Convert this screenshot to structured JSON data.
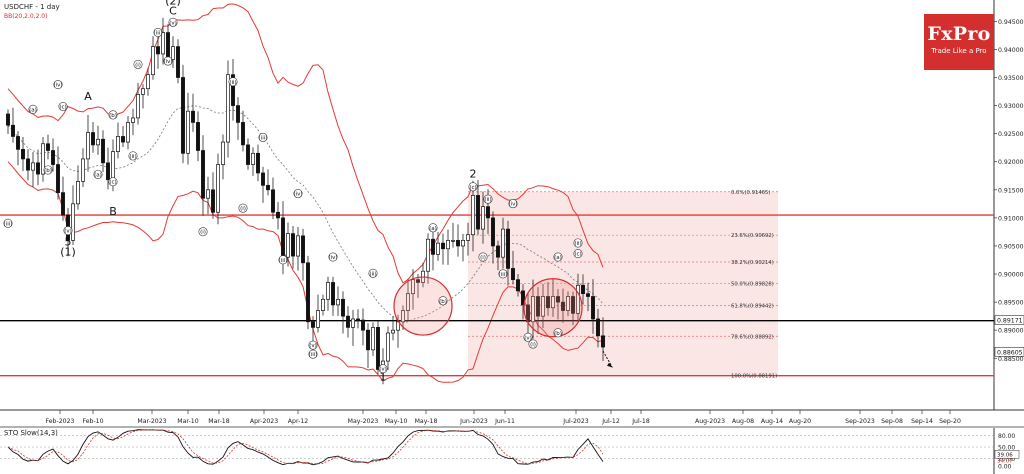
{
  "header": {
    "symbol": "USDCHF - 1 day",
    "indicator": "BB(20,2.0,2.0)"
  },
  "logo": {
    "brand": "FxPro",
    "tagline": "Trade Like a Pro"
  },
  "oscillator": {
    "label": "STO Slow(14,3)",
    "levels": [
      "80.00",
      "50.00",
      "20.00",
      "0.00"
    ],
    "value1": "34.07",
    "value2": "39.06"
  },
  "colors": {
    "up": "#111111",
    "down": "#111111",
    "band": "#e53935",
    "fib_zone": "#fbe3e3",
    "hline_red": "#e53935",
    "hline_black": "#000000"
  },
  "chart_data": {
    "type": "candlestick",
    "title": "USDCHF - 1 day",
    "y_ticks": [
      "0.94500",
      "0.94000",
      "0.93500",
      "0.93000",
      "0.92500",
      "0.92000",
      "0.91500",
      "0.91000",
      "0.90500",
      "0.90000",
      "0.89500",
      "0.89000",
      "0.88500"
    ],
    "ylim": [
      0.8765,
      0.9488
    ],
    "x_ticks": [
      "Feb-2023",
      "Feb-10",
      "Mar-2023",
      "Mar-10",
      "Mar-18",
      "Apr-2023",
      "Apr-12",
      "May-2023",
      "May-10",
      "May-18",
      "Jun-2023",
      "Jun-11",
      "Jul-2023",
      "Jul-12",
      "Jul-18",
      "Aug-2023",
      "Aug-08",
      "Aug-14",
      "Aug-20",
      "Sep-2023",
      "Sep-08",
      "Sep-14",
      "Sep-20"
    ],
    "price_tags": [
      {
        "value": "0.89171",
        "y": 0.89171
      },
      {
        "value": "0.88605",
        "y": 0.88605
      }
    ],
    "horizontal_lines": [
      {
        "y": 0.9105,
        "color": "red"
      },
      {
        "y": 0.8917,
        "color": "black"
      },
      {
        "y": 0.8819,
        "color": "red"
      }
    ],
    "fibonacci": [
      {
        "label": "0.0%(0.91465)",
        "y": 0.91465
      },
      {
        "label": "23.6%(0.90692)",
        "y": 0.90692
      },
      {
        "label": "38.2%(0.90214)",
        "y": 0.90214
      },
      {
        "label": "50.0%(0.89828)",
        "y": 0.89828
      },
      {
        "label": "61.8%(0.89442)",
        "y": 0.89442
      },
      {
        "label": "78.6%(0.88892)",
        "y": 0.88892
      },
      {
        "label": "100.0%(0.88191)",
        "y": 0.88191
      }
    ],
    "wave_labels": [
      {
        "t": "(2)",
        "i": 33,
        "y": 0.948,
        "big": true
      },
      {
        "t": "C",
        "i": 33,
        "y": 0.9462,
        "big": true
      },
      {
        "t": "(v)",
        "i": 33,
        "y": 0.9443,
        "c": true
      },
      {
        "t": "(iii)",
        "i": 30,
        "y": 0.9425,
        "c": true
      },
      {
        "t": "(iv)",
        "i": 32,
        "y": 0.9374,
        "c": true
      },
      {
        "t": "(i)",
        "i": 26,
        "y": 0.9368,
        "c": true
      },
      {
        "t": "(ii)",
        "i": 25,
        "y": 0.9205,
        "c": true
      },
      {
        "t": "A",
        "i": 16,
        "y": 0.931,
        "big": true
      },
      {
        "t": "(a)",
        "i": 5,
        "y": 0.9288,
        "c": true
      },
      {
        "t": "(c)",
        "i": 11,
        "y": 0.9293,
        "c": true
      },
      {
        "t": "(iv)",
        "i": 10,
        "y": 0.9332,
        "c": true
      },
      {
        "t": "(b)",
        "i": 21,
        "y": 0.9278,
        "c": true
      },
      {
        "t": "(b)",
        "i": 8,
        "y": 0.918,
        "c": true
      },
      {
        "t": "(a)",
        "i": 18,
        "y": 0.9172,
        "c": true
      },
      {
        "t": "(c)",
        "i": 21,
        "y": 0.9159,
        "c": true
      },
      {
        "t": "B",
        "i": 21,
        "y": 0.9105,
        "big": true
      },
      {
        "t": "(iii)",
        "i": 0,
        "y": 0.9085,
        "c": true
      },
      {
        "t": "(v)",
        "i": 12,
        "y": 0.9072,
        "c": true
      },
      {
        "t": "5",
        "i": 12,
        "y": 0.9051,
        "big": true
      },
      {
        "t": "(1)",
        "i": 12,
        "y": 0.9033,
        "big": true
      },
      {
        "t": "(ii)",
        "i": 45,
        "y": 0.9337,
        "c": true
      },
      {
        "t": "(iii)",
        "i": 51,
        "y": 0.9238,
        "c": true
      },
      {
        "t": "(i)",
        "i": 47,
        "y": 0.9112,
        "c": true
      },
      {
        "t": "(i)",
        "i": 39,
        "y": 0.907,
        "c": true
      },
      {
        "t": "(iv)",
        "i": 58,
        "y": 0.9138,
        "c": true
      },
      {
        "t": "(iii)",
        "i": 55,
        "y": 0.902,
        "c": true
      },
      {
        "t": "(iv)",
        "i": 65,
        "y": 0.9025,
        "c": true
      },
      {
        "t": "(ii)",
        "i": 73,
        "y": 0.8996,
        "c": true
      },
      {
        "t": "(v)",
        "i": 61,
        "y": 0.8868,
        "c": true
      },
      {
        "t": "(iii)",
        "i": 61,
        "y": 0.8852,
        "c": true
      },
      {
        "t": "(v)",
        "i": 75,
        "y": 0.8826,
        "c": true
      },
      {
        "t": "1",
        "i": 75,
        "y": 0.881,
        "big": true
      },
      {
        "t": "(a)",
        "i": 85,
        "y": 0.9077,
        "c": true
      },
      {
        "t": "(b)",
        "i": 87,
        "y": 0.8947,
        "c": true
      },
      {
        "t": "2",
        "i": 93,
        "y": 0.9172,
        "big": true
      },
      {
        "t": "(c)",
        "i": 93,
        "y": 0.915,
        "c": true
      },
      {
        "t": "(ii)",
        "i": 96,
        "y": 0.9128,
        "c": true
      },
      {
        "t": "(iv)",
        "i": 101,
        "y": 0.912,
        "c": true
      },
      {
        "t": "(i)",
        "i": 95,
        "y": 0.9025,
        "c": true
      },
      {
        "t": "(iii)",
        "i": 99,
        "y": 0.8995,
        "c": true
      },
      {
        "t": "(a)",
        "i": 110,
        "y": 0.9025,
        "c": true
      },
      {
        "t": "(b)",
        "i": 110,
        "y": 0.889,
        "c": true
      },
      {
        "t": "(v)",
        "i": 104,
        "y": 0.8882,
        "c": true
      },
      {
        "t": "(i)",
        "i": 105,
        "y": 0.887,
        "c": true
      },
      {
        "t": "(ii)",
        "i": 114,
        "y": 0.905,
        "c": true
      },
      {
        "t": "(c)",
        "i": 114,
        "y": 0.9031,
        "c": true
      }
    ],
    "circles": [
      {
        "i": 83,
        "y": 0.8943
      },
      {
        "i": 109,
        "y": 0.894
      }
    ],
    "closes": [
      0.9265,
      0.9245,
      0.9222,
      0.9205,
      0.9185,
      0.9198,
      0.9178,
      0.9232,
      0.922,
      0.9195,
      0.9145,
      0.9105,
      0.906,
      0.9125,
      0.9165,
      0.9205,
      0.9252,
      0.923,
      0.924,
      0.9198,
      0.9168,
      0.9218,
      0.9245,
      0.9235,
      0.927,
      0.9278,
      0.932,
      0.933,
      0.9355,
      0.9405,
      0.9392,
      0.943,
      0.9382,
      0.9405,
      0.935,
      0.9215,
      0.929,
      0.927,
      0.922,
      0.9135,
      0.915,
      0.911,
      0.9195,
      0.9235,
      0.9355,
      0.93,
      0.927,
      0.923,
      0.9195,
      0.9215,
      0.918,
      0.9158,
      0.915,
      0.911,
      0.91,
      0.903,
      0.9072,
      0.9032,
      0.9068,
      0.902,
      0.8915,
      0.8905,
      0.8935,
      0.8955,
      0.8985,
      0.8945,
      0.8955,
      0.8925,
      0.8905,
      0.892,
      0.8918,
      0.89,
      0.8865,
      0.8905,
      0.883,
      0.8845,
      0.8895,
      0.89,
      0.8915,
      0.8935,
      0.8965,
      0.899,
      0.8985,
      0.9005,
      0.9062,
      0.9035,
      0.9055,
      0.9045,
      0.906,
      0.906,
      0.905,
      0.906,
      0.907,
      0.914,
      0.908,
      0.912,
      0.91,
      0.905,
      0.903,
      0.908,
      0.901,
      0.899,
      0.897,
      0.8945,
      0.8915,
      0.896,
      0.8925,
      0.896,
      0.894,
      0.896,
      0.895,
      0.8935,
      0.896,
      0.893,
      0.898,
      0.8965,
      0.896,
      0.892,
      0.889,
      0.887
    ],
    "series": [
      {
        "name": "BB upper"
      },
      {
        "name": "BB middle"
      },
      {
        "name": "BB lower"
      }
    ]
  }
}
